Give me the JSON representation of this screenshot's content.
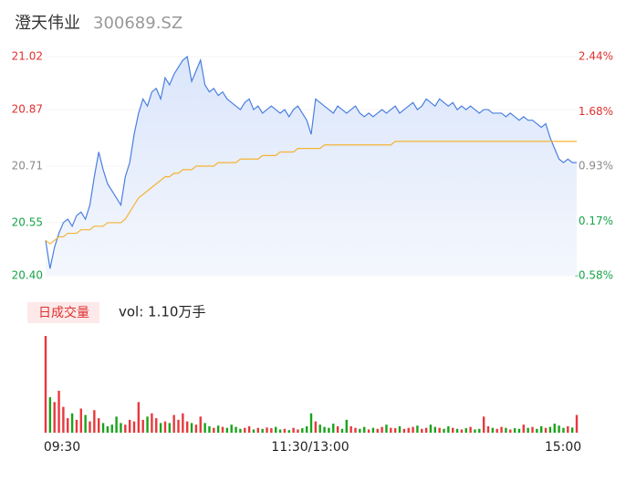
{
  "chart_data": {
    "type": "intraday",
    "title": "澄天伟业",
    "subtitle": "300689.SZ",
    "volume_label": "日成交量",
    "volume_summary": "vol: 1.10万手",
    "x_labels": [
      "09:30",
      "11:30/13:00",
      "15:00"
    ],
    "ylim": [
      20.4,
      21.02
    ],
    "yticks": [
      {
        "value": 20.4,
        "label": "20.40"
      },
      20.55,
      20.71,
      20.87,
      21.02
    ],
    "y2lim": [
      -0.58,
      2.44
    ],
    "y2ticks": [
      {
        "value": -0.58,
        "label": "-0.58%"
      },
      {
        "value": 0.17,
        "label": "0.17%"
      },
      {
        "value": 0.93,
        "label": "0.93%"
      },
      {
        "value": 1.68,
        "label": "1.68%"
      },
      {
        "value": 2.44,
        "label": "2.44%"
      }
    ],
    "tick_colors": [
      "#17a34a",
      "#17a34a",
      "#8a8a8a",
      "#e03030",
      "#e03030"
    ],
    "up_color": "#e8383d",
    "down_color": "#1aa31a",
    "series": [
      {
        "name": "price",
        "color": "#4a7fe0",
        "values": [
          20.5,
          20.42,
          20.48,
          20.52,
          20.55,
          20.56,
          20.54,
          20.57,
          20.58,
          20.56,
          20.6,
          20.68,
          20.75,
          20.7,
          20.66,
          20.64,
          20.62,
          20.6,
          20.68,
          20.72,
          20.8,
          20.86,
          20.9,
          20.88,
          20.92,
          20.93,
          20.9,
          20.96,
          20.94,
          20.97,
          20.99,
          21.01,
          21.02,
          20.95,
          20.98,
          21.01,
          20.94,
          20.92,
          20.93,
          20.91,
          20.92,
          20.9,
          20.89,
          20.88,
          20.87,
          20.89,
          20.9,
          20.87,
          20.88,
          20.86,
          20.87,
          20.88,
          20.87,
          20.86,
          20.87,
          20.85,
          20.87,
          20.88,
          20.86,
          20.84,
          20.8,
          20.9,
          20.89,
          20.88,
          20.87,
          20.86,
          20.88,
          20.87,
          20.86,
          20.87,
          20.88,
          20.86,
          20.85,
          20.86,
          20.85,
          20.86,
          20.87,
          20.86,
          20.87,
          20.88,
          20.86,
          20.87,
          20.88,
          20.89,
          20.87,
          20.88,
          20.9,
          20.89,
          20.88,
          20.9,
          20.89,
          20.88,
          20.89,
          20.87,
          20.88,
          20.87,
          20.88,
          20.87,
          20.86,
          20.87,
          20.87,
          20.86,
          20.86,
          20.86,
          20.85,
          20.86,
          20.85,
          20.84,
          20.85,
          20.84,
          20.84,
          20.83,
          20.82,
          20.83,
          20.79,
          20.76,
          20.73,
          20.72,
          20.73,
          20.72,
          20.72
        ]
      },
      {
        "name": "average",
        "color": "#f5b335",
        "values": [
          20.5,
          20.49,
          20.5,
          20.51,
          20.51,
          20.52,
          20.52,
          20.52,
          20.53,
          20.53,
          20.53,
          20.54,
          20.54,
          20.54,
          20.55,
          20.55,
          20.55,
          20.55,
          20.56,
          20.58,
          20.6,
          20.62,
          20.63,
          20.64,
          20.65,
          20.66,
          20.67,
          20.68,
          20.68,
          20.69,
          20.69,
          20.7,
          20.7,
          20.7,
          20.71,
          20.71,
          20.71,
          20.71,
          20.71,
          20.72,
          20.72,
          20.72,
          20.72,
          20.72,
          20.73,
          20.73,
          20.73,
          20.73,
          20.73,
          20.74,
          20.74,
          20.74,
          20.74,
          20.75,
          20.75,
          20.75,
          20.75,
          20.76,
          20.76,
          20.76,
          20.76,
          20.76,
          20.76,
          20.77,
          20.77,
          20.77,
          20.77,
          20.77,
          20.77,
          20.77,
          20.77,
          20.77,
          20.77,
          20.77,
          20.77,
          20.77,
          20.77,
          20.77,
          20.77,
          20.78,
          20.78,
          20.78,
          20.78,
          20.78,
          20.78,
          20.78,
          20.78,
          20.78,
          20.78,
          20.78,
          20.78,
          20.78,
          20.78,
          20.78,
          20.78,
          20.78,
          20.78,
          20.78,
          20.78,
          20.78,
          20.78,
          20.78,
          20.78,
          20.78,
          20.78,
          20.78,
          20.78,
          20.78,
          20.78,
          20.78,
          20.78,
          20.78,
          20.78,
          20.78,
          20.78,
          20.78,
          20.78,
          20.78,
          20.78,
          20.78,
          20.78
        ]
      },
      {
        "name": "volume",
        "values": [
          300,
          110,
          95,
          130,
          80,
          45,
          60,
          40,
          75,
          55,
          35,
          70,
          45,
          30,
          20,
          25,
          50,
          30,
          25,
          40,
          35,
          95,
          40,
          50,
          60,
          45,
          30,
          35,
          30,
          55,
          40,
          60,
          35,
          30,
          25,
          50,
          30,
          20,
          15,
          22,
          18,
          15,
          25,
          18,
          12,
          15,
          20,
          10,
          15,
          12,
          16,
          14,
          18,
          10,
          12,
          8,
          15,
          10,
          14,
          20,
          60,
          35,
          25,
          18,
          15,
          28,
          20,
          12,
          40,
          20,
          15,
          12,
          18,
          10,
          15,
          12,
          18,
          25,
          15,
          14,
          20,
          12,
          15,
          18,
          22,
          12,
          15,
          25,
          18,
          15,
          12,
          20,
          15,
          12,
          10,
          14,
          18,
          10,
          12,
          50,
          20,
          15,
          12,
          18,
          15,
          10,
          14,
          12,
          25,
          15,
          18,
          12,
          20,
          15,
          18,
          28,
          22,
          15,
          20,
          16,
          55
        ]
      }
    ],
    "volume_ylim": [
      0,
      300
    ]
  }
}
